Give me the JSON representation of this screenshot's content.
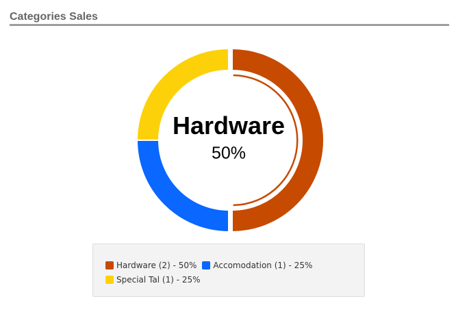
{
  "widget": {
    "title": "Categories Sales"
  },
  "colors": {
    "hardware": "#c64a00",
    "accomodation": "#0a67ff",
    "special_tal": "#fdd10a",
    "title_rule": "#9e9e9e",
    "legend_bg": "#f3f3f3"
  },
  "chart_data": {
    "type": "pie",
    "variant": "donut",
    "title": "",
    "center": {
      "label": "Hardware",
      "value": "50%"
    },
    "highlighted": "Hardware",
    "categories": [
      "Hardware",
      "Accomodation",
      "Special Tal"
    ],
    "counts": [
      2,
      1,
      1
    ],
    "values": [
      50,
      25,
      25
    ],
    "unit": "%",
    "legend_position": "bottom",
    "legend": [
      {
        "label": "Hardware (2) - 50%",
        "color": "#c64a00"
      },
      {
        "label": "Accomodation (1) - 25%",
        "color": "#0a67ff"
      },
      {
        "label": "Special Tal (1) - 25%",
        "color": "#fdd10a"
      }
    ]
  }
}
